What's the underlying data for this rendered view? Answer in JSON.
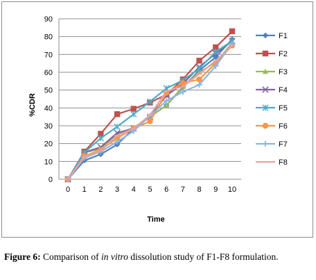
{
  "chart_data": {
    "type": "line",
    "title": "",
    "xlabel": "Time",
    "ylabel": "%CDR",
    "x": [
      0,
      1,
      2,
      3,
      4,
      5,
      6,
      7,
      8,
      9,
      10
    ],
    "ylim": [
      0,
      90
    ],
    "yticks": [
      0,
      10,
      20,
      30,
      40,
      50,
      60,
      70,
      80,
      90
    ],
    "grid": "horizontal",
    "legend": "right",
    "series": [
      {
        "name": "F1",
        "color": "#4f81bd",
        "marker": "diamond",
        "values": [
          0,
          10.5,
          14,
          19.5,
          28.5,
          35,
          41.5,
          51.5,
          61,
          68.5,
          78.5
        ]
      },
      {
        "name": "F2",
        "color": "#c0504d",
        "marker": "square",
        "values": [
          0,
          15.5,
          25.5,
          36.5,
          39.5,
          43,
          47.5,
          56,
          66.5,
          74,
          83
        ]
      },
      {
        "name": "F3",
        "color": "#9bbb59",
        "marker": "triangle",
        "values": [
          0,
          15,
          17,
          25,
          29,
          35,
          41.5,
          52,
          60,
          65.5,
          76.5
        ]
      },
      {
        "name": "F4",
        "color": "#8064a2",
        "marker": "x",
        "values": [
          0,
          15,
          18,
          26,
          28.5,
          35,
          47,
          53.5,
          63,
          70.5,
          77.5
        ]
      },
      {
        "name": "F5",
        "color": "#4bacc6",
        "marker": "asterisk",
        "values": [
          0,
          15,
          23,
          29.5,
          36.5,
          43.5,
          51,
          55.5,
          62,
          71.5,
          77.5
        ]
      },
      {
        "name": "F6",
        "color": "#f79646",
        "marker": "circle",
        "values": [
          0,
          13,
          16.5,
          23,
          28.5,
          32.5,
          48.5,
          54,
          56,
          65,
          75
        ]
      },
      {
        "name": "F7",
        "color": "#8eb4e3",
        "marker": "plus",
        "values": [
          0,
          12,
          15.5,
          21,
          27,
          35.5,
          44,
          49,
          53,
          63.5,
          76
        ]
      },
      {
        "name": "F8",
        "color": "#e6a3a1",
        "marker": "dash",
        "values": [
          0,
          12.5,
          16,
          24.5,
          28.5,
          36,
          49.5,
          52,
          59,
          66.5,
          75
        ]
      }
    ]
  },
  "caption": {
    "label": "Figure 6:",
    "text_before": "Comparison of",
    "italic": "in vitro",
    "text_after": "dissolution study of F1-F8 formulation."
  }
}
